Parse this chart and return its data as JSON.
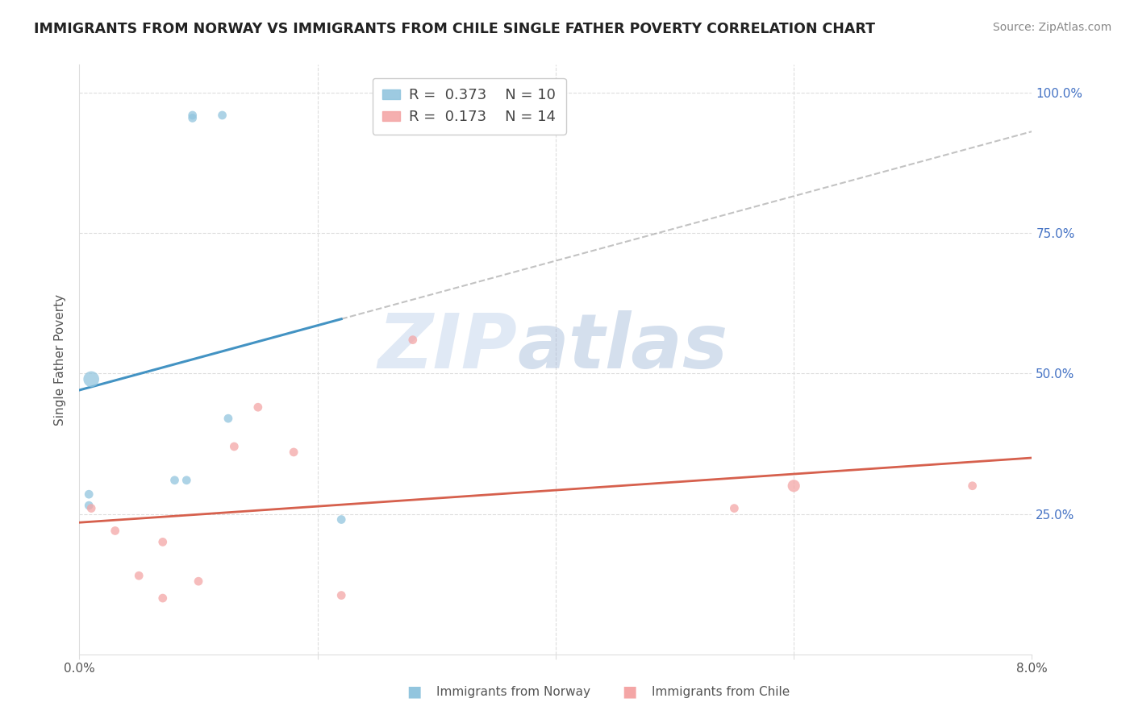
{
  "title": "IMMIGRANTS FROM NORWAY VS IMMIGRANTS FROM CHILE SINGLE FATHER POVERTY CORRELATION CHART",
  "source": "Source: ZipAtlas.com",
  "ylabel": "Single Father Poverty",
  "norway_R": 0.373,
  "norway_N": 10,
  "chile_R": 0.173,
  "chile_N": 14,
  "norway_color": "#92c5de",
  "chile_color": "#f4a6a6",
  "norway_line_color": "#4393c3",
  "chile_line_color": "#d6604d",
  "norway_x": [
    0.0008,
    0.0008,
    0.008,
    0.009,
    0.0095,
    0.0095,
    0.012,
    0.0125,
    0.001,
    0.022
  ],
  "norway_y": [
    0.285,
    0.265,
    0.31,
    0.31,
    0.96,
    0.955,
    0.96,
    0.42,
    0.49,
    0.24
  ],
  "chile_x": [
    0.001,
    0.003,
    0.005,
    0.007,
    0.007,
    0.01,
    0.013,
    0.015,
    0.018,
    0.022,
    0.028,
    0.055,
    0.06,
    0.075
  ],
  "chile_y": [
    0.26,
    0.22,
    0.14,
    0.2,
    0.1,
    0.13,
    0.37,
    0.44,
    0.36,
    0.105,
    0.56,
    0.26,
    0.3,
    0.3
  ],
  "norway_dot_sizes": [
    60,
    60,
    60,
    60,
    60,
    60,
    60,
    60,
    200,
    60
  ],
  "chile_dot_sizes": [
    60,
    60,
    60,
    60,
    60,
    60,
    60,
    60,
    60,
    60,
    60,
    60,
    120,
    60
  ],
  "watermark_zip": "ZIP",
  "watermark_atlas": "atlas",
  "xlim": [
    0.0,
    0.08
  ],
  "ylim": [
    0.0,
    1.05
  ],
  "y_ticks": [
    0.0,
    0.25,
    0.5,
    0.75,
    1.0
  ],
  "y_tick_labels_right": [
    "",
    "25.0%",
    "50.0%",
    "75.0%",
    "100.0%"
  ],
  "x_ticks": [
    0.0,
    0.02,
    0.04,
    0.06,
    0.08
  ],
  "right_tick_color": "#4472c4",
  "grid_color": "#dddddd",
  "title_color": "#222222",
  "source_color": "#888888",
  "label_color": "#555555"
}
